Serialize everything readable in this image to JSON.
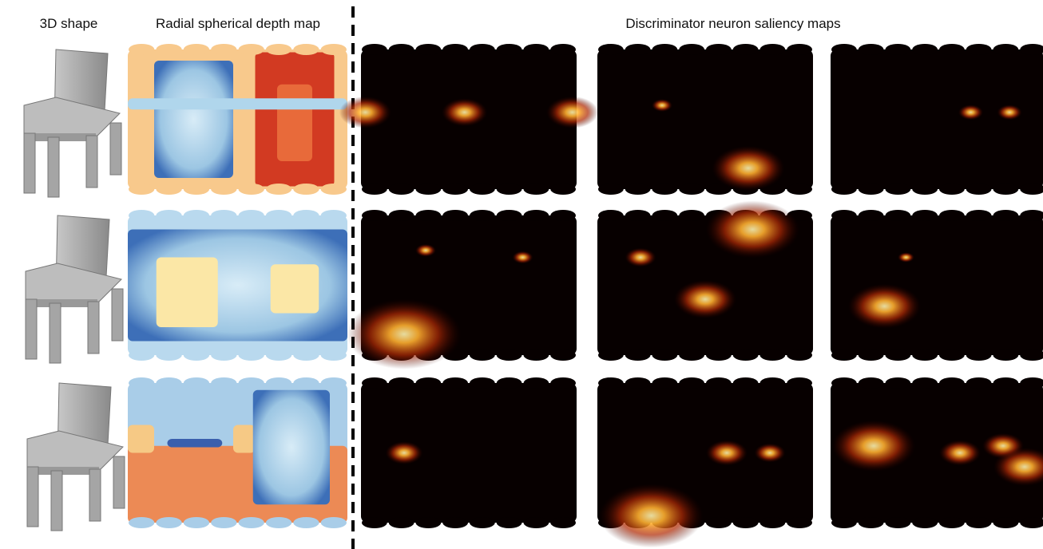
{
  "headers": {
    "shape": "3D shape",
    "depth": "Radial spherical depth map",
    "saliency": "Discriminator neuron saliency maps"
  }
}
